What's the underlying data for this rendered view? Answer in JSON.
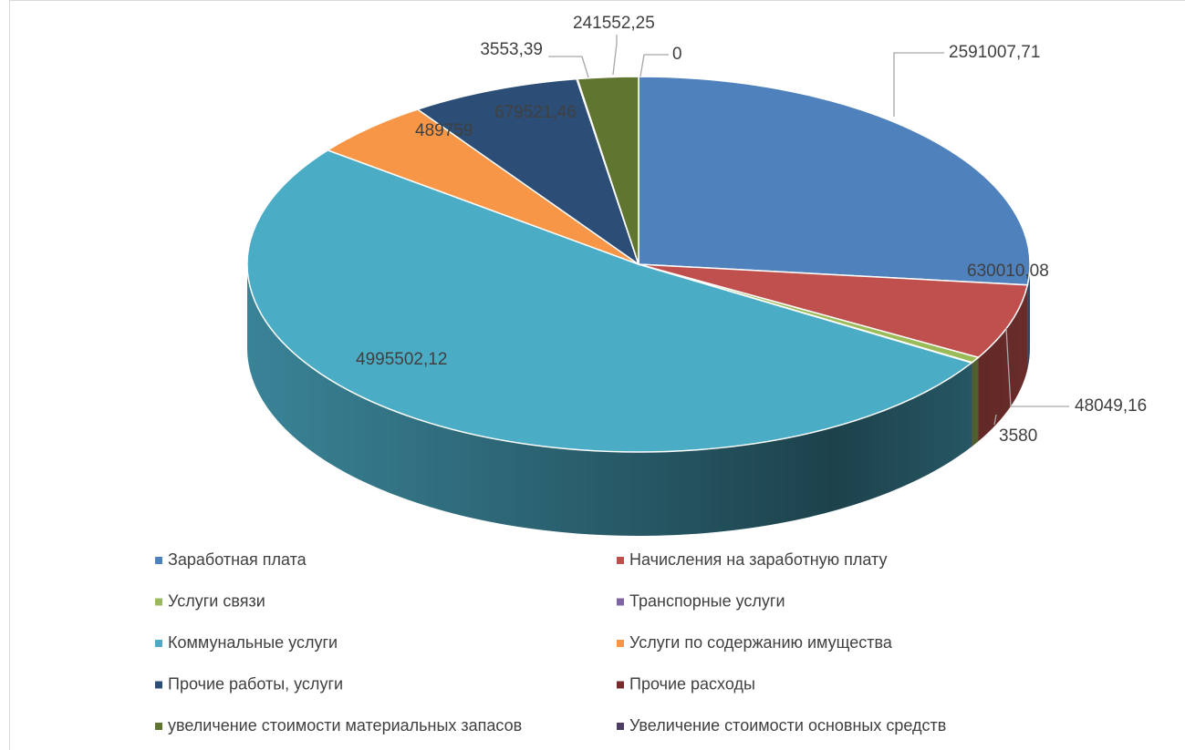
{
  "chart_data": {
    "type": "pie3d",
    "categories": [
      "Заработная плата",
      "Начисления на заработную плату",
      "Услуги связи",
      "Транспорные услуги",
      "Коммунальные услуги",
      "Услуги по содержанию имущества",
      "Прочие работы, услуги",
      "Прочие расходы",
      "увеличение стоимости материальных запасов",
      "Увеличение стоимости основных средств"
    ],
    "values": [
      2591007.71,
      630010.08,
      48049.16,
      3580,
      4995502.12,
      489759,
      679521.46,
      3553.39,
      241552.25,
      0
    ],
    "value_labels": [
      "2591007,71",
      "630010,08",
      "48049,16",
      "3580",
      "4995502,12",
      "489759",
      "679521,46",
      "3553,39",
      "241552,25",
      "0"
    ],
    "colors": [
      "#4f81bd",
      "#c0504d",
      "#9bbb59",
      "#8064a2",
      "#4bacc6",
      "#f79646",
      "#2c4d75",
      "#772c2a",
      "#5f7530",
      "#4d3b62"
    ],
    "legend": "bottom"
  }
}
